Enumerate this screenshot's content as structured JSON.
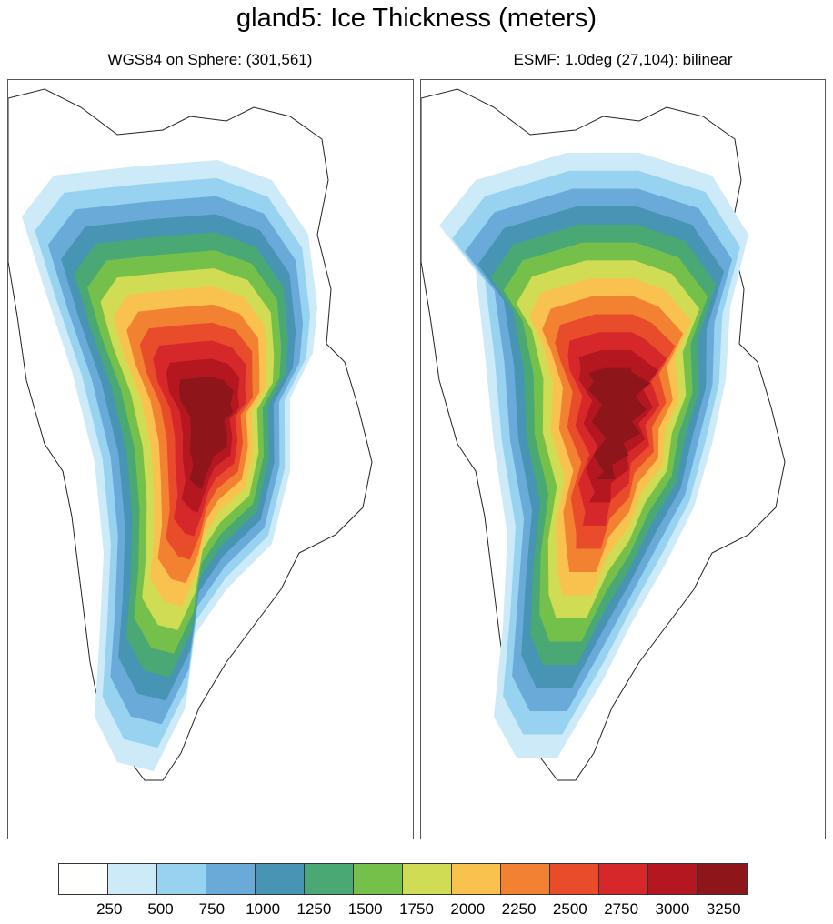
{
  "title": "gland5: Ice Thickness (meters)",
  "left_panel": {
    "subtitle": "WGS84 on Sphere: (301,561)"
  },
  "right_panel": {
    "subtitle": "ESMF: 1.0deg (27,104): bilinear"
  },
  "colorbar": {
    "colors": [
      "#FFFFFD",
      "#CDEAF8",
      "#97D3F1",
      "#69AAD9",
      "#4894B4",
      "#49A873",
      "#74C04B",
      "#D1DC55",
      "#F9C24E",
      "#F38132",
      "#E84C2B",
      "#D6282A",
      "#B4171F",
      "#8E1519"
    ],
    "labels": [
      "250",
      "500",
      "750",
      "1000",
      "1250",
      "1500",
      "1750",
      "2000",
      "2250",
      "2500",
      "2750",
      "3000",
      "3250"
    ]
  }
}
